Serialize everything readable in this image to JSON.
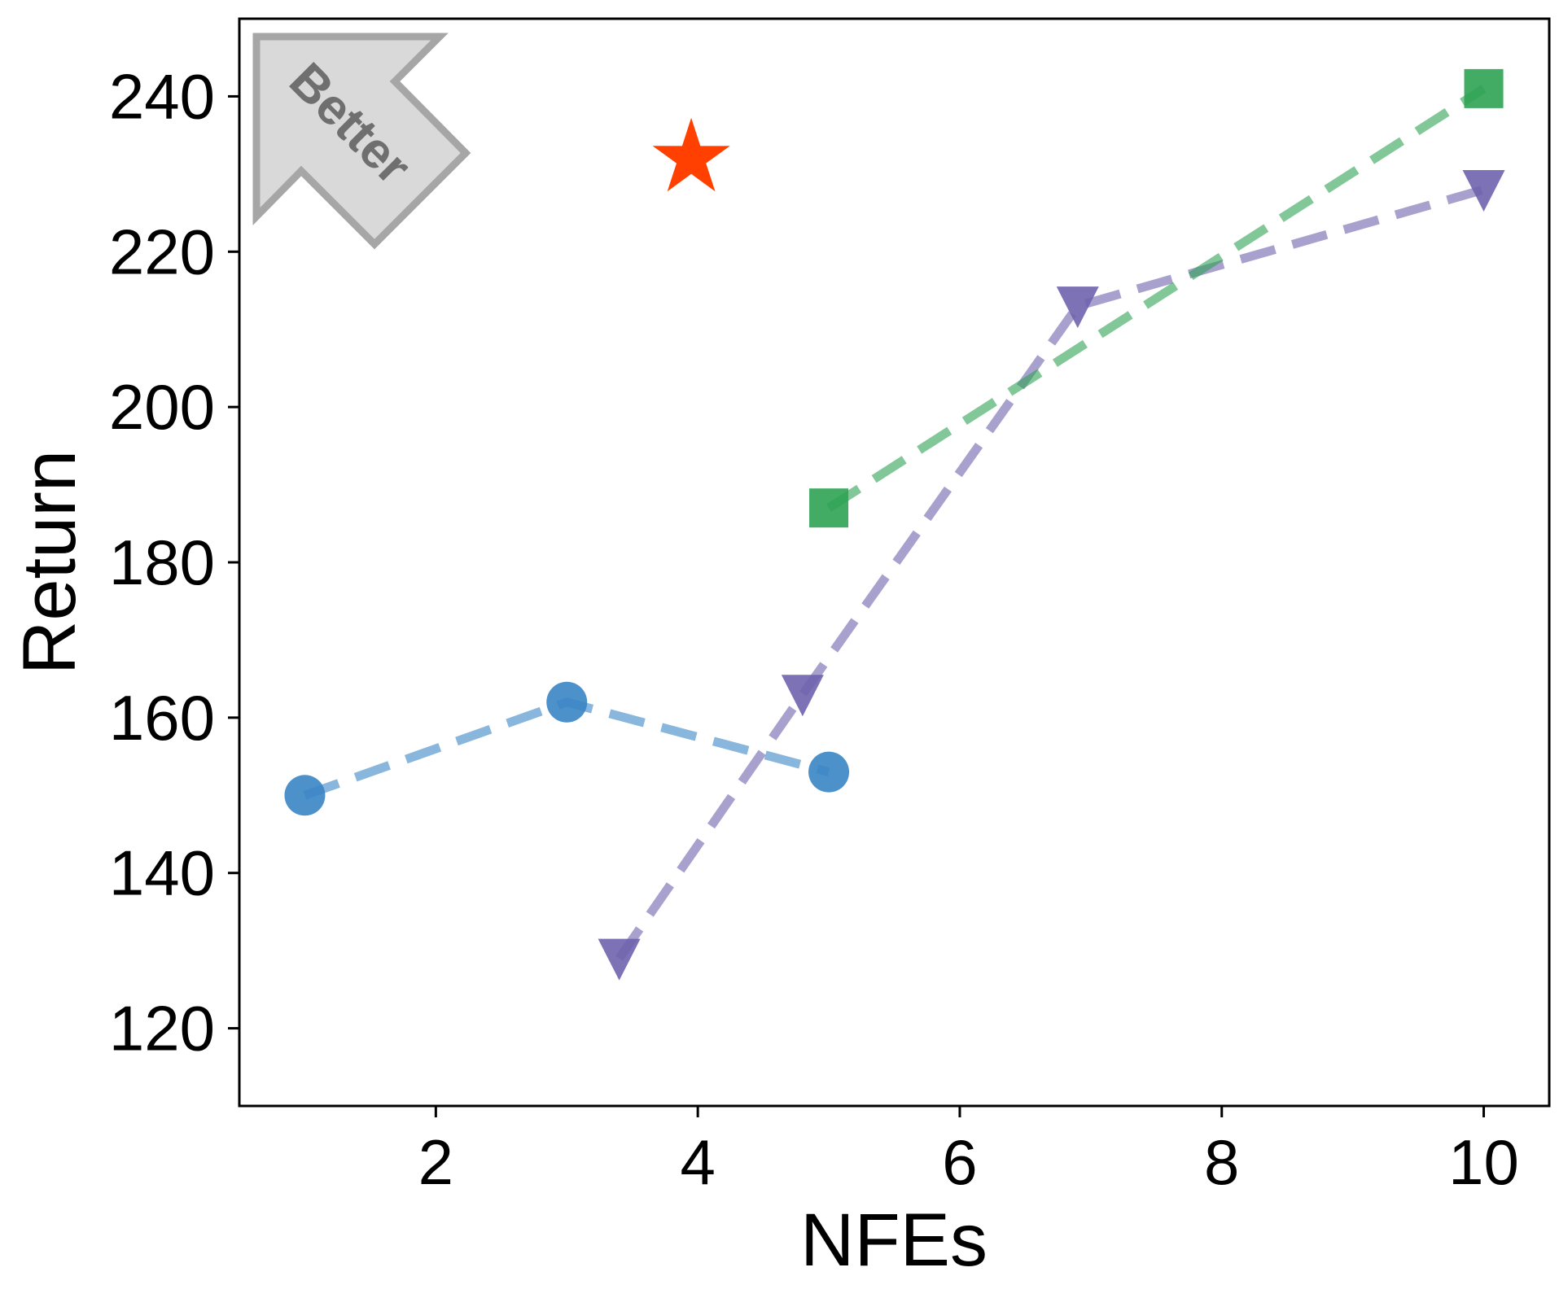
{
  "chart_data": {
    "type": "line",
    "xlabel": "NFEs",
    "ylabel": "Return",
    "xlim": [
      0.5,
      10.5
    ],
    "ylim": [
      110,
      250
    ],
    "xticks": [
      2,
      4,
      6,
      8,
      10
    ],
    "yticks": [
      120,
      140,
      160,
      180,
      200,
      220,
      240
    ],
    "grid": false,
    "annotation": "Better",
    "series": [
      {
        "color": "#3a85c4",
        "marker": "circle",
        "linestyle": "dashed",
        "x": [
          1,
          3,
          5
        ],
        "y": [
          150,
          162,
          153
        ]
      },
      {
        "color": "#6e63ad",
        "marker": "triangle-down",
        "linestyle": "dashed",
        "x": [
          3.4,
          4.8,
          6.9,
          10
        ],
        "y": [
          129,
          163,
          213,
          228
        ]
      },
      {
        "color": "#2ea253",
        "marker": "square",
        "linestyle": "dashed",
        "x": [
          5,
          10
        ],
        "y": [
          187,
          241
        ]
      },
      {
        "color": "#ff4000",
        "marker": "star",
        "linestyle": "none",
        "x": [
          3.95
        ],
        "y": [
          232
        ]
      }
    ]
  }
}
